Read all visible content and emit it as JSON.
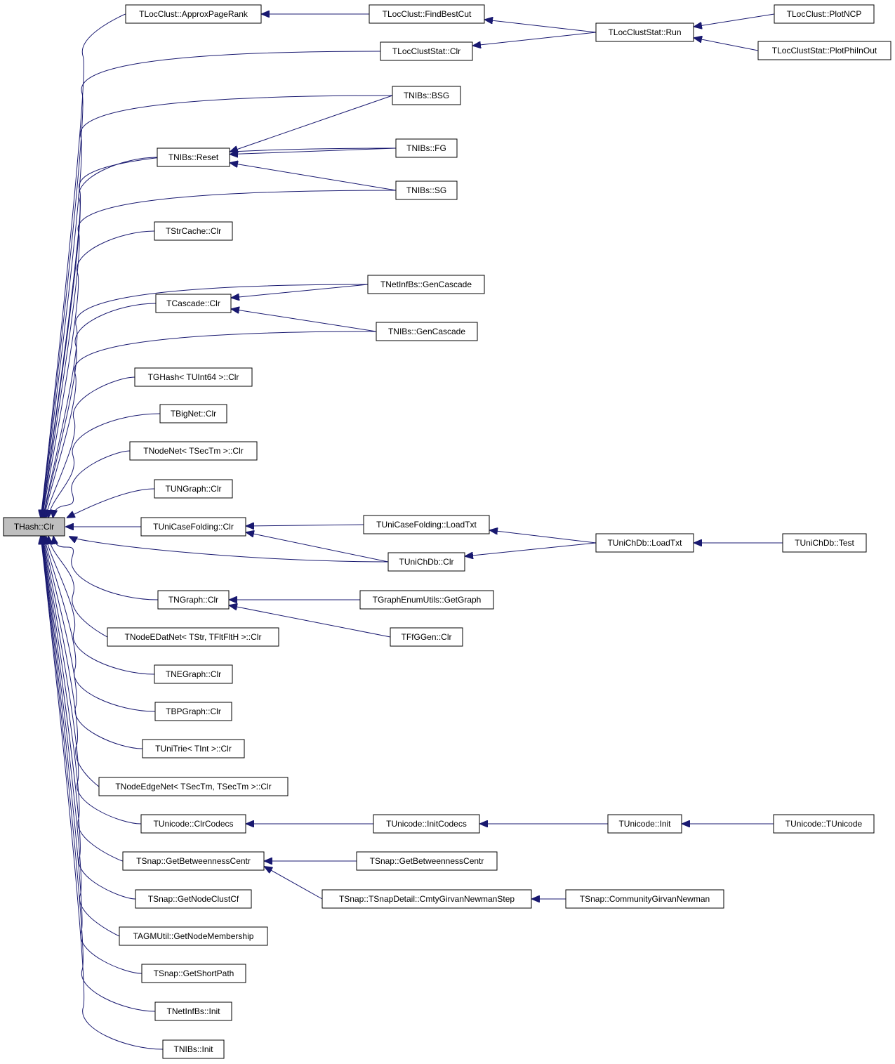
{
  "nodes": [
    {
      "label": "THash::Clr"
    },
    {
      "label": "TLocClust::ApproxPageRank"
    },
    {
      "label": "TLocClust::FindBestCut"
    },
    {
      "label": "TLocClustStat::Run"
    },
    {
      "label": "TLocClust::PlotNCP"
    },
    {
      "label": "TLocClustStat::PlotPhiInOut"
    },
    {
      "label": "TLocClustStat::Clr"
    },
    {
      "label": "TNIBs::BSG"
    },
    {
      "label": "TNIBs::Reset"
    },
    {
      "label": "TNIBs::FG"
    },
    {
      "label": "TNIBs::SG"
    },
    {
      "label": "TStrCache::Clr"
    },
    {
      "label": "TNetInfBs::GenCascade"
    },
    {
      "label": "TCascade::Clr"
    },
    {
      "label": "TNIBs::GenCascade"
    },
    {
      "label": "TGHash< TUInt64 >::Clr"
    },
    {
      "label": "TBigNet::Clr"
    },
    {
      "label": "TNodeNet< TSecTm >::Clr"
    },
    {
      "label": "TUNGraph::Clr"
    },
    {
      "label": "TUniCaseFolding::Clr"
    },
    {
      "label": "TUniCaseFolding::LoadTxt"
    },
    {
      "label": "TUniChDb::LoadTxt"
    },
    {
      "label": "TUniChDb::Test"
    },
    {
      "label": "TUniChDb::Clr"
    },
    {
      "label": "TNGraph::Clr"
    },
    {
      "label": "TGraphEnumUtils::GetGraph"
    },
    {
      "label": "TFfGGen::Clr"
    },
    {
      "label": "TNodeEDatNet< TStr, TFltFltH >::Clr"
    },
    {
      "label": "TNEGraph::Clr"
    },
    {
      "label": "TBPGraph::Clr"
    },
    {
      "label": "TUniTrie< TInt >::Clr"
    },
    {
      "label": "TNodeEdgeNet< TSecTm, TSecTm >::Clr"
    },
    {
      "label": "TUnicode::ClrCodecs"
    },
    {
      "label": "TUnicode::InitCodecs"
    },
    {
      "label": "TUnicode::Init"
    },
    {
      "label": "TUnicode::TUnicode"
    },
    {
      "label": "TSnap::GetBetweennessCentr"
    },
    {
      "label": "TSnap::GetBetweennessCentr"
    },
    {
      "label": "TSnap::TSnapDetail::CmtyGirvanNewmanStep"
    },
    {
      "label": "TSnap::CommunityGirvanNewman"
    },
    {
      "label": "TSnap::GetNodeClustCf"
    },
    {
      "label": "TAGMUtil::GetNodeMembership"
    },
    {
      "label": "TSnap::GetShortPath"
    },
    {
      "label": "TNetInfBs::Init"
    },
    {
      "label": "TNIBs::Init"
    }
  ]
}
